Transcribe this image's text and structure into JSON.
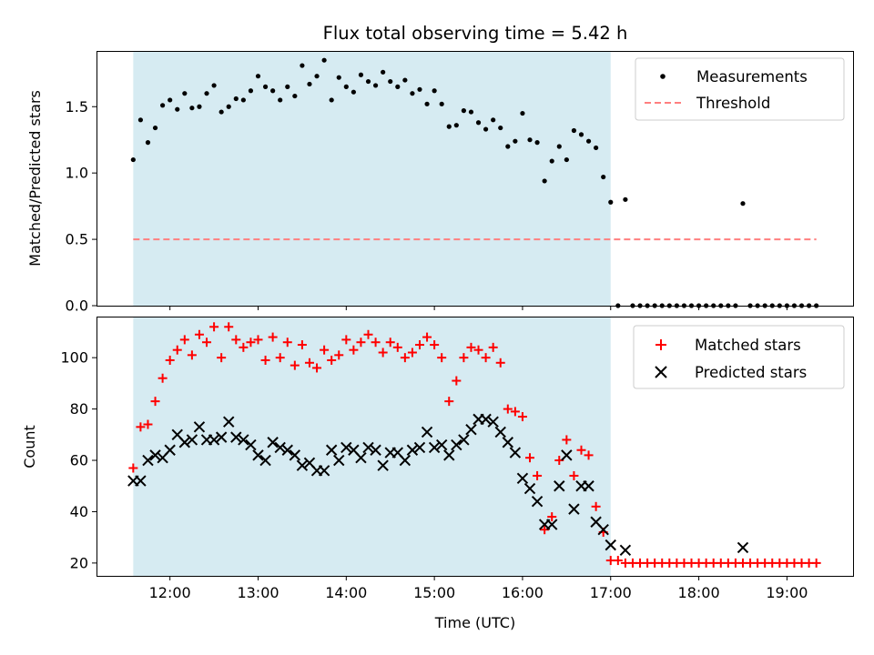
{
  "chart_data": [
    {
      "type": "scatter",
      "title": "Flux total observing time = 5.42 h",
      "ylabel": "Matched/Predicted stars",
      "ylim": [
        0,
        1.92
      ],
      "yticks": [
        "0.0",
        "0.5",
        "1.0",
        "1.5"
      ],
      "yticks_values": [
        0,
        0.5,
        1.0,
        1.5
      ],
      "shaded_span": [
        "11:35",
        "17:00"
      ],
      "legend_position": "top-right",
      "series": [
        {
          "name": "Measurements",
          "marker": "dot",
          "color": "#000000",
          "points": [
            [
              "11:35",
              1.1
            ],
            [
              "11:40",
              1.4
            ],
            [
              "11:45",
              1.23
            ],
            [
              "11:50",
              1.34
            ],
            [
              "11:55",
              1.51
            ],
            [
              "12:00",
              1.55
            ],
            [
              "12:05",
              1.48
            ],
            [
              "12:10",
              1.6
            ],
            [
              "12:15",
              1.49
            ],
            [
              "12:20",
              1.5
            ],
            [
              "12:25",
              1.6
            ],
            [
              "12:30",
              1.66
            ],
            [
              "12:35",
              1.46
            ],
            [
              "12:40",
              1.5
            ],
            [
              "12:45",
              1.56
            ],
            [
              "12:50",
              1.55
            ],
            [
              "12:55",
              1.62
            ],
            [
              "13:00",
              1.73
            ],
            [
              "13:05",
              1.65
            ],
            [
              "13:10",
              1.62
            ],
            [
              "13:15",
              1.55
            ],
            [
              "13:20",
              1.65
            ],
            [
              "13:25",
              1.58
            ],
            [
              "13:30",
              1.81
            ],
            [
              "13:35",
              1.67
            ],
            [
              "13:40",
              1.73
            ],
            [
              "13:45",
              1.85
            ],
            [
              "13:50",
              1.55
            ],
            [
              "13:55",
              1.72
            ],
            [
              "14:00",
              1.65
            ],
            [
              "14:05",
              1.61
            ],
            [
              "14:10",
              1.74
            ],
            [
              "14:15",
              1.69
            ],
            [
              "14:20",
              1.66
            ],
            [
              "14:25",
              1.76
            ],
            [
              "14:30",
              1.69
            ],
            [
              "14:35",
              1.65
            ],
            [
              "14:40",
              1.7
            ],
            [
              "14:45",
              1.6
            ],
            [
              "14:50",
              1.63
            ],
            [
              "14:55",
              1.52
            ],
            [
              "15:00",
              1.62
            ],
            [
              "15:05",
              1.52
            ],
            [
              "15:10",
              1.35
            ],
            [
              "15:15",
              1.36
            ],
            [
              "15:20",
              1.47
            ],
            [
              "15:25",
              1.46
            ],
            [
              "15:30",
              1.38
            ],
            [
              "15:35",
              1.33
            ],
            [
              "15:40",
              1.4
            ],
            [
              "15:45",
              1.34
            ],
            [
              "15:50",
              1.2
            ],
            [
              "15:55",
              1.24
            ],
            [
              "16:00",
              1.45
            ],
            [
              "16:05",
              1.25
            ],
            [
              "16:10",
              1.23
            ],
            [
              "16:15",
              0.94
            ],
            [
              "16:20",
              1.09
            ],
            [
              "16:25",
              1.2
            ],
            [
              "16:30",
              1.1
            ],
            [
              "16:35",
              1.32
            ],
            [
              "16:40",
              1.29
            ],
            [
              "16:45",
              1.24
            ],
            [
              "16:50",
              1.19
            ],
            [
              "16:55",
              0.97
            ],
            [
              "17:00",
              0.78
            ],
            [
              "17:05",
              0.0
            ],
            [
              "17:10",
              0.8
            ],
            [
              "17:15",
              0.0
            ],
            [
              "17:20",
              0.0
            ],
            [
              "17:25",
              0.0
            ],
            [
              "17:30",
              0.0
            ],
            [
              "17:35",
              0.0
            ],
            [
              "17:40",
              0.0
            ],
            [
              "17:45",
              0.0
            ],
            [
              "17:50",
              0.0
            ],
            [
              "17:55",
              0.0
            ],
            [
              "18:00",
              0.0
            ],
            [
              "18:05",
              0.0
            ],
            [
              "18:10",
              0.0
            ],
            [
              "18:15",
              0.0
            ],
            [
              "18:20",
              0.0
            ],
            [
              "18:25",
              0.0
            ],
            [
              "18:30",
              0.77
            ],
            [
              "18:35",
              0.0
            ],
            [
              "18:40",
              0.0
            ],
            [
              "18:45",
              0.0
            ],
            [
              "18:50",
              0.0
            ],
            [
              "18:55",
              0.0
            ],
            [
              "19:00",
              0.0
            ],
            [
              "19:05",
              0.0
            ],
            [
              "19:10",
              0.0
            ],
            [
              "19:15",
              0.0
            ],
            [
              "19:20",
              0.0
            ]
          ]
        },
        {
          "name": "Threshold",
          "marker": "dashed-line",
          "color": "#ff7f7f",
          "points": [
            [
              "11:35",
              0.5
            ],
            [
              "19:20",
              0.5
            ]
          ]
        }
      ]
    },
    {
      "type": "scatter",
      "xlabel": "Time (UTC)",
      "ylabel": "Count",
      "ylim": [
        15,
        116
      ],
      "yticks": [
        "20",
        "40",
        "60",
        "80",
        "100"
      ],
      "yticks_values": [
        20,
        40,
        60,
        80,
        100
      ],
      "xticks": [
        "12:00",
        "13:00",
        "14:00",
        "15:00",
        "16:00",
        "17:00",
        "18:00",
        "19:00"
      ],
      "xlim": [
        "11:10",
        "19:45"
      ],
      "shaded_span": [
        "11:35",
        "17:00"
      ],
      "legend_position": "top-right",
      "series": [
        {
          "name": "Matched stars",
          "marker": "plus",
          "color": "#ff0000",
          "points": [
            [
              "11:35",
              57
            ],
            [
              "11:40",
              73
            ],
            [
              "11:45",
              74
            ],
            [
              "11:50",
              83
            ],
            [
              "11:55",
              92
            ],
            [
              "12:00",
              99
            ],
            [
              "12:05",
              103
            ],
            [
              "12:10",
              107
            ],
            [
              "12:15",
              101
            ],
            [
              "12:20",
              109
            ],
            [
              "12:25",
              106
            ],
            [
              "12:30",
              112
            ],
            [
              "12:35",
              100
            ],
            [
              "12:40",
              112
            ],
            [
              "12:45",
              107
            ],
            [
              "12:50",
              104
            ],
            [
              "12:55",
              106
            ],
            [
              "13:00",
              107
            ],
            [
              "13:05",
              99
            ],
            [
              "13:10",
              108
            ],
            [
              "13:15",
              100
            ],
            [
              "13:20",
              106
            ],
            [
              "13:25",
              97
            ],
            [
              "13:30",
              105
            ],
            [
              "13:35",
              98
            ],
            [
              "13:40",
              96
            ],
            [
              "13:45",
              103
            ],
            [
              "13:50",
              99
            ],
            [
              "13:55",
              101
            ],
            [
              "14:00",
              107
            ],
            [
              "14:05",
              103
            ],
            [
              "14:10",
              106
            ],
            [
              "14:15",
              109
            ],
            [
              "14:20",
              106
            ],
            [
              "14:25",
              102
            ],
            [
              "14:30",
              106
            ],
            [
              "14:35",
              104
            ],
            [
              "14:40",
              100
            ],
            [
              "14:45",
              102
            ],
            [
              "14:50",
              105
            ],
            [
              "14:55",
              108
            ],
            [
              "15:00",
              105
            ],
            [
              "15:05",
              100
            ],
            [
              "15:10",
              83
            ],
            [
              "15:15",
              91
            ],
            [
              "15:20",
              100
            ],
            [
              "15:25",
              104
            ],
            [
              "15:30",
              103
            ],
            [
              "15:35",
              100
            ],
            [
              "15:40",
              104
            ],
            [
              "15:45",
              98
            ],
            [
              "15:50",
              80
            ],
            [
              "15:55",
              79
            ],
            [
              "16:00",
              77
            ],
            [
              "16:05",
              61
            ],
            [
              "16:10",
              54
            ],
            [
              "16:15",
              33
            ],
            [
              "16:20",
              38
            ],
            [
              "16:25",
              60
            ],
            [
              "16:30",
              68
            ],
            [
              "16:35",
              54
            ],
            [
              "16:40",
              64
            ],
            [
              "16:45",
              62
            ],
            [
              "16:50",
              42
            ],
            [
              "16:55",
              32
            ],
            [
              "17:00",
              21
            ],
            [
              "17:05",
              21
            ],
            [
              "17:10",
              20
            ],
            [
              "17:15",
              20
            ],
            [
              "17:20",
              20
            ],
            [
              "17:25",
              20
            ],
            [
              "17:30",
              20
            ],
            [
              "17:35",
              20
            ],
            [
              "17:40",
              20
            ],
            [
              "17:45",
              20
            ],
            [
              "17:50",
              20
            ],
            [
              "17:55",
              20
            ],
            [
              "18:00",
              20
            ],
            [
              "18:05",
              20
            ],
            [
              "18:10",
              20
            ],
            [
              "18:15",
              20
            ],
            [
              "18:20",
              20
            ],
            [
              "18:25",
              20
            ],
            [
              "18:30",
              20
            ],
            [
              "18:35",
              20
            ],
            [
              "18:40",
              20
            ],
            [
              "18:45",
              20
            ],
            [
              "18:50",
              20
            ],
            [
              "18:55",
              20
            ],
            [
              "19:00",
              20
            ],
            [
              "19:05",
              20
            ],
            [
              "19:10",
              20
            ],
            [
              "19:15",
              20
            ],
            [
              "19:20",
              20
            ]
          ]
        },
        {
          "name": "Predicted stars",
          "marker": "x",
          "color": "#000000",
          "points": [
            [
              "11:35",
              52
            ],
            [
              "11:40",
              52
            ],
            [
              "11:45",
              60
            ],
            [
              "11:50",
              62
            ],
            [
              "11:55",
              61
            ],
            [
              "12:00",
              64
            ],
            [
              "12:05",
              70
            ],
            [
              "12:10",
              67
            ],
            [
              "12:15",
              68
            ],
            [
              "12:20",
              73
            ],
            [
              "12:25",
              68
            ],
            [
              "12:30",
              68
            ],
            [
              "12:35",
              69
            ],
            [
              "12:40",
              75
            ],
            [
              "12:45",
              69
            ],
            [
              "12:50",
              68
            ],
            [
              "12:55",
              66
            ],
            [
              "13:00",
              62
            ],
            [
              "13:05",
              60
            ],
            [
              "13:10",
              67
            ],
            [
              "13:15",
              65
            ],
            [
              "13:20",
              64
            ],
            [
              "13:25",
              62
            ],
            [
              "13:30",
              58
            ],
            [
              "13:35",
              59
            ],
            [
              "13:40",
              56
            ],
            [
              "13:45",
              56
            ],
            [
              "13:50",
              64
            ],
            [
              "13:55",
              60
            ],
            [
              "14:00",
              65
            ],
            [
              "14:05",
              64
            ],
            [
              "14:10",
              61
            ],
            [
              "14:15",
              65
            ],
            [
              "14:20",
              64
            ],
            [
              "14:25",
              58
            ],
            [
              "14:30",
              63
            ],
            [
              "14:35",
              63
            ],
            [
              "14:40",
              60
            ],
            [
              "14:45",
              64
            ],
            [
              "14:50",
              65
            ],
            [
              "14:55",
              71
            ],
            [
              "15:00",
              65
            ],
            [
              "15:05",
              66
            ],
            [
              "15:10",
              62
            ],
            [
              "15:15",
              66
            ],
            [
              "15:20",
              68
            ],
            [
              "15:25",
              72
            ],
            [
              "15:30",
              76
            ],
            [
              "15:35",
              76
            ],
            [
              "15:40",
              75
            ],
            [
              "15:45",
              71
            ],
            [
              "15:50",
              67
            ],
            [
              "15:55",
              63
            ],
            [
              "16:00",
              53
            ],
            [
              "16:05",
              49
            ],
            [
              "16:10",
              44
            ],
            [
              "16:15",
              35
            ],
            [
              "16:20",
              35
            ],
            [
              "16:25",
              50
            ],
            [
              "16:30",
              62
            ],
            [
              "16:35",
              41
            ],
            [
              "16:40",
              50
            ],
            [
              "16:45",
              50
            ],
            [
              "16:50",
              36
            ],
            [
              "16:55",
              33
            ],
            [
              "17:00",
              27
            ],
            [
              "17:10",
              25
            ],
            [
              "18:30",
              26
            ]
          ]
        }
      ]
    }
  ]
}
